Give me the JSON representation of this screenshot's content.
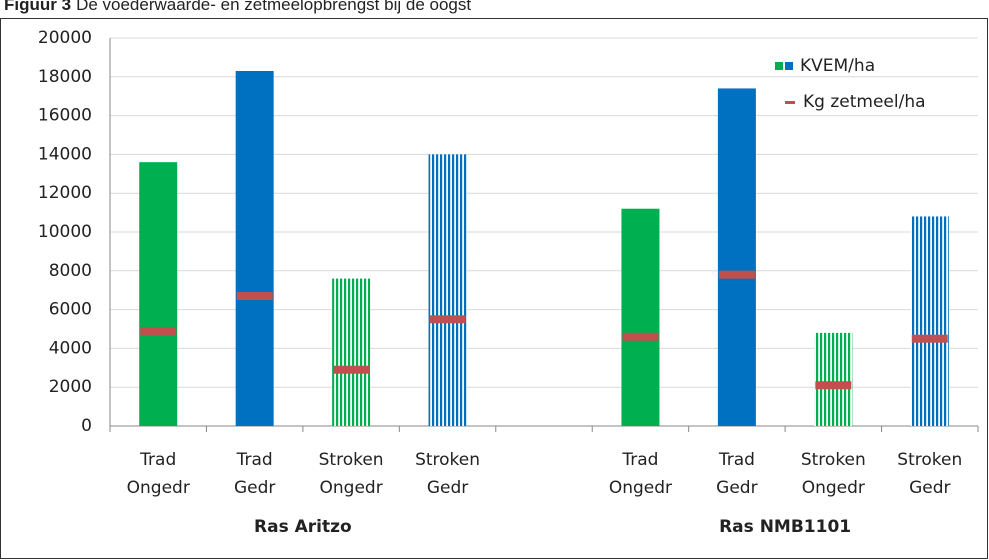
{
  "chart_data": {
    "type": "bar",
    "title_label": "Figuur 3",
    "title": "De voederwaarde- en zetmeelopbrengst bij de oogst",
    "categories": [
      [
        "Trad",
        "Ongedr"
      ],
      [
        "Trad",
        "Gedr"
      ],
      [
        "Stroken",
        "Ongedr"
      ],
      [
        "Stroken",
        "Gedr"
      ],
      null,
      [
        "Trad",
        "Ongedr"
      ],
      [
        "Trad",
        "Gedr"
      ],
      [
        "Stroken",
        "Ongedr"
      ],
      [
        "Stroken",
        "Gedr"
      ]
    ],
    "groups": [
      "Ras Aritzo",
      "Ras NMB1101"
    ],
    "hatched": [
      false,
      false,
      true,
      true,
      null,
      false,
      false,
      true,
      true
    ],
    "series": [
      {
        "name": "KVEM/ha",
        "colors": [
          "#00b050",
          "#0070c0",
          "#00b050",
          "#0070c0",
          null,
          "#00b050",
          "#0070c0",
          "#00b050",
          "#0070c0"
        ],
        "values": [
          13600,
          18300,
          7600,
          14000,
          null,
          11200,
          17400,
          4800,
          10800
        ]
      },
      {
        "name": "Kg zetmeel/ha",
        "color": "#c0504d",
        "marker": "dash",
        "values": [
          4900,
          6700,
          2900,
          5500,
          null,
          4600,
          7800,
          2100,
          4500
        ]
      }
    ],
    "ylim": [
      0,
      20000
    ],
    "yticks": [
      0,
      2000,
      4000,
      6000,
      8000,
      10000,
      12000,
      14000,
      16000,
      18000,
      20000
    ],
    "grid": true,
    "legend": "top-right"
  }
}
